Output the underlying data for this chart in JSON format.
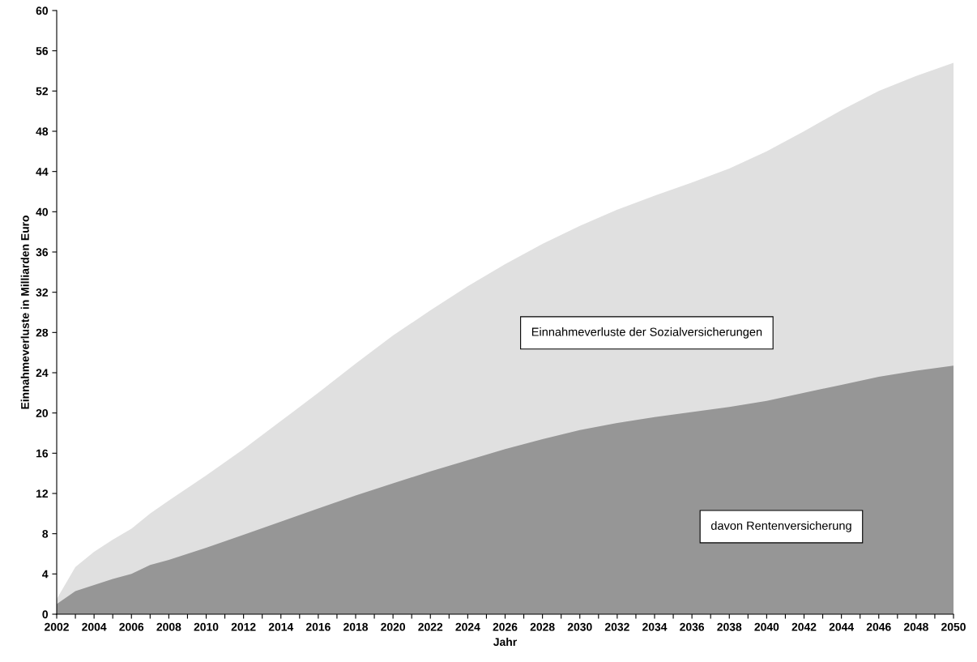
{
  "chart_data": {
    "type": "area",
    "xlabel": "Jahr",
    "ylabel": "Einnahmeverluste in Milliarden Euro",
    "x": [
      2002,
      2003,
      2004,
      2005,
      2006,
      2007,
      2008,
      2010,
      2012,
      2014,
      2016,
      2018,
      2020,
      2022,
      2024,
      2026,
      2028,
      2030,
      2032,
      2034,
      2036,
      2038,
      2040,
      2042,
      2044,
      2046,
      2048,
      2050
    ],
    "series": [
      {
        "name": "Einnahmeverluste der Sozialversicherungen",
        "color": "#e0e0e0",
        "values": [
          1.5,
          4.7,
          6.2,
          7.4,
          8.5,
          10.0,
          11.3,
          13.8,
          16.4,
          19.2,
          22.0,
          24.9,
          27.7,
          30.2,
          32.6,
          34.8,
          36.8,
          38.6,
          40.2,
          41.6,
          42.9,
          44.3,
          46.0,
          48.0,
          50.1,
          52.0,
          53.5,
          54.8
        ]
      },
      {
        "name": "davon Rentenversicherung",
        "color": "#969696",
        "values": [
          1.0,
          2.3,
          2.9,
          3.5,
          4.0,
          4.9,
          5.4,
          6.6,
          7.9,
          9.2,
          10.5,
          11.8,
          13.0,
          14.2,
          15.3,
          16.4,
          17.4,
          18.3,
          19.0,
          19.6,
          20.1,
          20.6,
          21.2,
          22.0,
          22.8,
          23.6,
          24.2,
          24.7
        ]
      }
    ],
    "xlim": [
      2002,
      2050
    ],
    "xticks": [
      2002,
      {
        "value": 2003,
        "label": null
      },
      2004,
      {
        "value": 2005,
        "label": null
      },
      2006,
      {
        "value": 2007,
        "label": null
      },
      2008,
      {
        "value": 2009,
        "label": null
      },
      2010,
      {
        "value": 2011,
        "label": null
      },
      2012,
      {
        "value": 2013,
        "label": null
      },
      2014,
      {
        "value": 2015,
        "label": null
      },
      2016,
      {
        "value": 2017,
        "label": null
      },
      2018,
      {
        "value": 2019,
        "label": null
      },
      2020,
      {
        "value": 2021,
        "label": null
      },
      2022,
      {
        "value": 2023,
        "label": null
      },
      2024,
      {
        "value": 2025,
        "label": null
      },
      2026,
      {
        "value": 2027,
        "label": null
      },
      2028,
      {
        "value": 2029,
        "label": null
      },
      2030,
      {
        "value": 2031,
        "label": null
      },
      2032,
      {
        "value": 2033,
        "label": null
      },
      2034,
      {
        "value": 2035,
        "label": null
      },
      2036,
      {
        "value": 2037,
        "label": null
      },
      2038,
      {
        "value": 2039,
        "label": null
      },
      2040,
      {
        "value": 2041,
        "label": null
      },
      2042,
      {
        "value": 2043,
        "label": null
      },
      2044,
      {
        "value": 2045,
        "label": null
      },
      2046,
      {
        "value": 2047,
        "label": null
      },
      2048,
      {
        "value": 2049,
        "label": null
      },
      2050
    ],
    "ylim": [
      0,
      60
    ],
    "yticks": [
      0,
      4,
      8,
      12,
      16,
      20,
      24,
      28,
      32,
      36,
      40,
      44,
      48,
      52,
      56,
      60
    ],
    "grid": false,
    "legend": false
  }
}
